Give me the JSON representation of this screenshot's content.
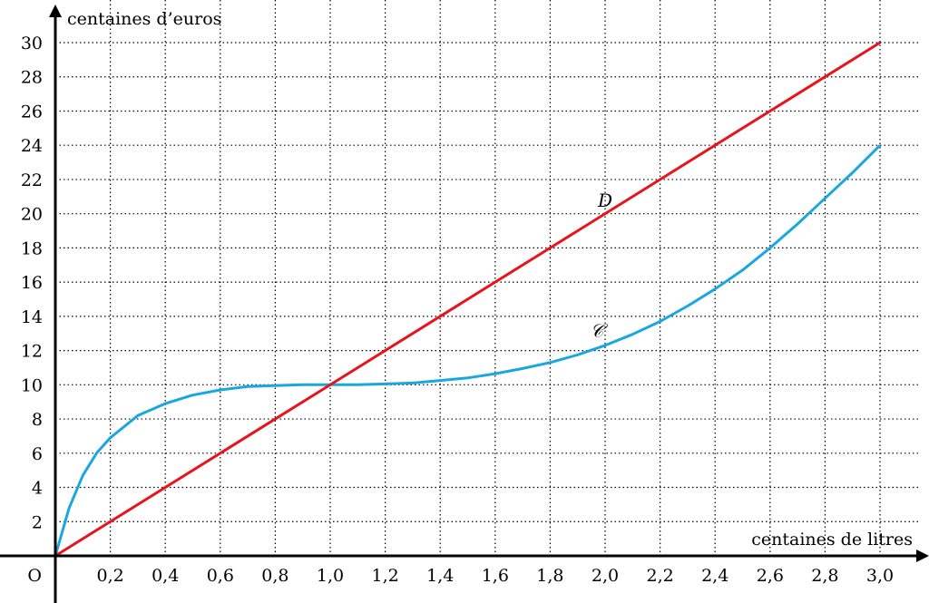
{
  "chart_data": {
    "type": "line",
    "xlabel": "centaines de litres",
    "ylabel": "centaines d’euros",
    "origin_label": "O",
    "xlim": [
      0,
      3.0
    ],
    "ylim": [
      0,
      30
    ],
    "x_ticks": [
      "0,2",
      "0,4",
      "0,6",
      "0,8",
      "1,0",
      "1,2",
      "1,4",
      "1,6",
      "1,8",
      "2,0",
      "2,2",
      "2,4",
      "2,6",
      "2,8",
      "3,0"
    ],
    "y_ticks": [
      "2",
      "4",
      "6",
      "8",
      "10",
      "12",
      "14",
      "16",
      "18",
      "20",
      "22",
      "24",
      "26",
      "28",
      "30"
    ],
    "grid": true,
    "series": [
      {
        "name": "𝒞",
        "color": "#1aa7e0",
        "x": [
          0,
          0.05,
          0.1,
          0.15,
          0.2,
          0.3,
          0.4,
          0.5,
          0.6,
          0.7,
          0.8,
          0.9,
          1.0,
          1.1,
          1.2,
          1.3,
          1.4,
          1.5,
          1.6,
          1.7,
          1.8,
          1.9,
          2.0,
          2.1,
          2.2,
          2.3,
          2.4,
          2.5,
          2.6,
          2.7,
          2.8,
          2.9,
          3.0
        ],
        "values": [
          0,
          2.8,
          4.7,
          6.0,
          6.9,
          8.2,
          8.9,
          9.4,
          9.7,
          9.9,
          9.95,
          10.0,
          10.0,
          10.0,
          10.05,
          10.1,
          10.25,
          10.4,
          10.65,
          10.95,
          11.3,
          11.75,
          12.3,
          12.95,
          13.7,
          14.6,
          15.6,
          16.7,
          18.0,
          19.4,
          20.9,
          22.4,
          24.0
        ]
      },
      {
        "name": "D",
        "color": "#e8141c",
        "x": [
          0,
          3.0
        ],
        "values": [
          0,
          30
        ]
      }
    ]
  }
}
